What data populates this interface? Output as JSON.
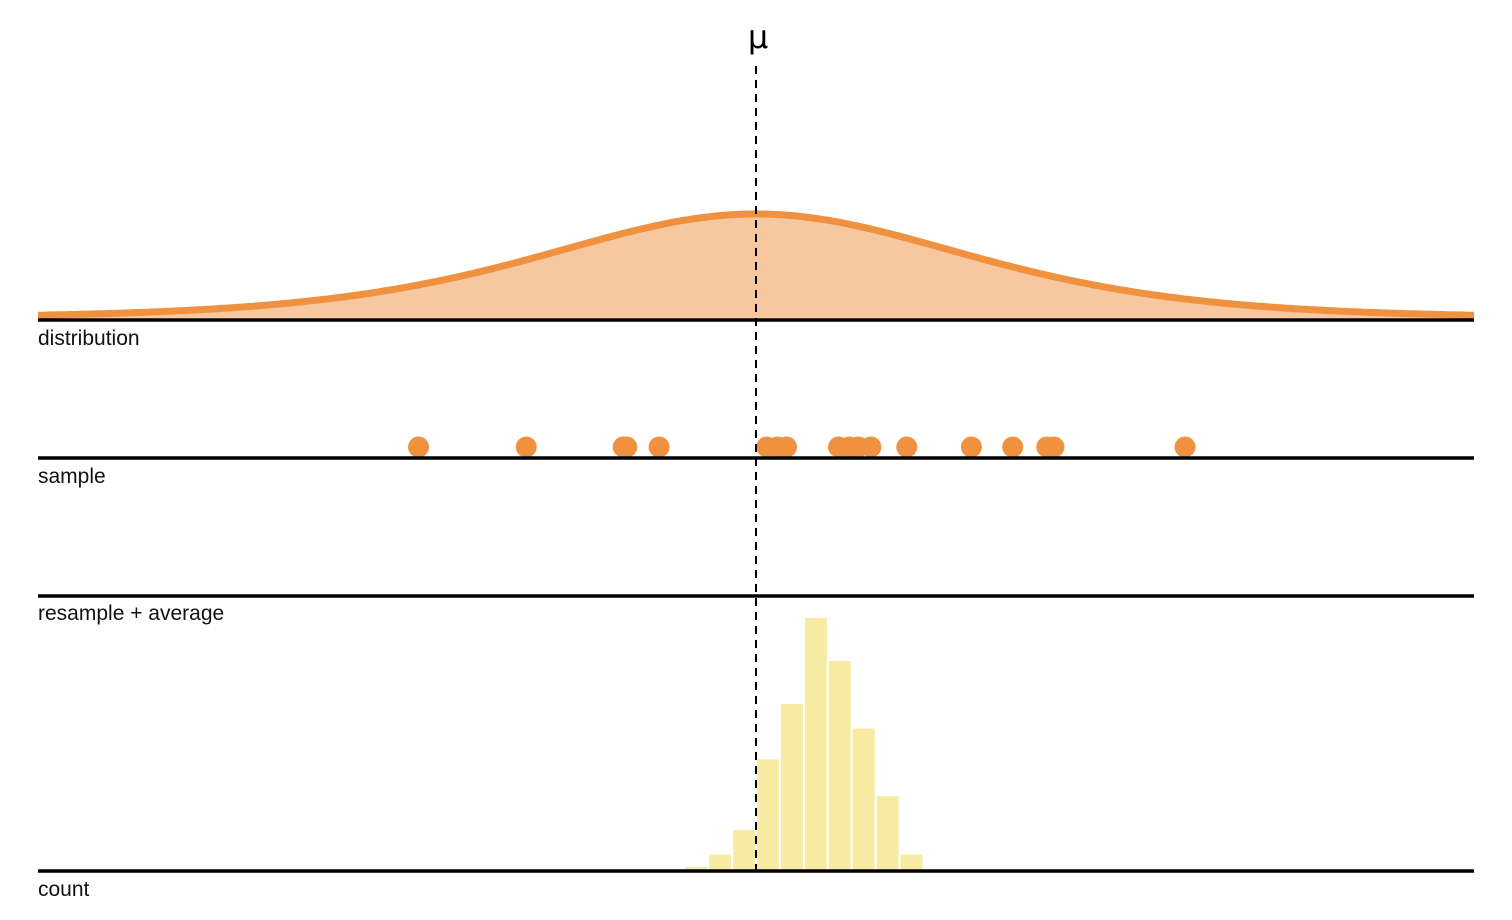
{
  "labels": {
    "mu": "μ",
    "distribution": "distribution",
    "sample": "sample",
    "resample": "resample + average",
    "count": "count"
  },
  "colors": {
    "curve_fill": "#f7c8a0",
    "curve_stroke": "#f0913f",
    "dot": "#f0913f",
    "bar": "#f7eaa2",
    "axis": "#000000"
  },
  "chart_data": {
    "type": "bar",
    "x_domain": [
      -4,
      4
    ],
    "mu": 0,
    "distribution": {
      "peak_height": 0.42,
      "scale": 0.8
    },
    "sample": [
      -1.88,
      -1.28,
      -0.74,
      -0.72,
      -0.54,
      0.06,
      0.12,
      0.17,
      0.46,
      0.52,
      0.57,
      0.64,
      0.84,
      1.2,
      1.43,
      1.62,
      1.66,
      2.39
    ],
    "histogram": {
      "bin_edges": [
        -0.4,
        -0.267,
        -0.133,
        0.0,
        0.133,
        0.267,
        0.4,
        0.533,
        0.667,
        0.8,
        0.933
      ],
      "counts": [
        1,
        5,
        13,
        36,
        54,
        82,
        68,
        46,
        24,
        5
      ]
    }
  }
}
